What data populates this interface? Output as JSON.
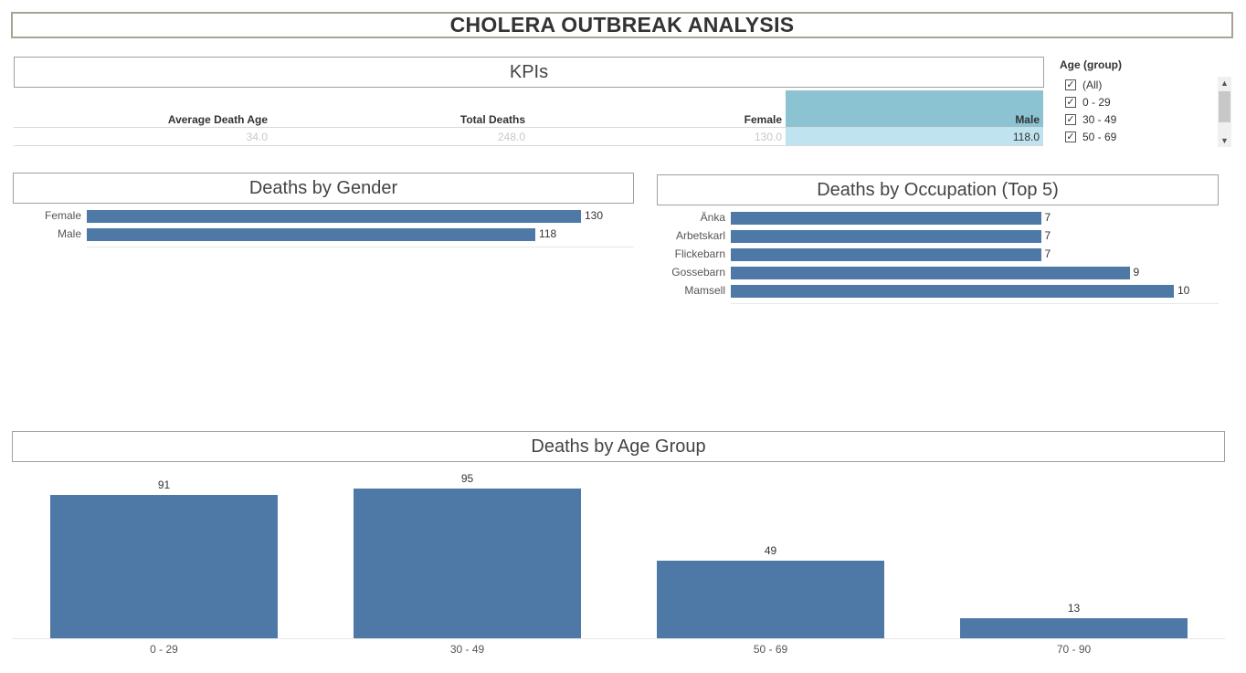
{
  "title": "CHOLERA OUTBREAK ANALYSIS",
  "kpis": {
    "section_title": "KPIs",
    "columns": [
      {
        "header": "Average Death Age",
        "value": "34.0"
      },
      {
        "header": "Total Deaths",
        "value": "248.0"
      },
      {
        "header": "Female",
        "value": "130.0"
      },
      {
        "header": "Male",
        "value": "118.0"
      }
    ]
  },
  "filter": {
    "title": "Age (group)",
    "items": [
      {
        "label": "(All)",
        "checked": true
      },
      {
        "label": "0 - 29",
        "checked": true
      },
      {
        "label": "30 - 49",
        "checked": true
      },
      {
        "label": "50 - 69",
        "checked": true
      }
    ]
  },
  "colors": {
    "bar": "#4e79a7",
    "kpi_highlight_header": "#8bc3d3",
    "kpi_highlight_value": "#bfe3ef",
    "title_border": "#a8a494"
  },
  "gender_chart": {
    "section_title": "Deaths by Gender"
  },
  "occupation_chart": {
    "section_title": "Deaths by Occupation (Top 5)"
  },
  "age_chart": {
    "section_title": "Deaths by Age Group"
  },
  "chart_data": [
    {
      "type": "bar",
      "orientation": "horizontal",
      "title": "Deaths by Gender",
      "categories": [
        "Female",
        "Male"
      ],
      "values": [
        130,
        118
      ],
      "xlim": [
        0,
        130
      ]
    },
    {
      "type": "bar",
      "orientation": "horizontal",
      "title": "Deaths by Occupation (Top 5)",
      "categories": [
        "Änka",
        "Arbetskarl",
        "Flickebarn",
        "Gossebarn",
        "Mamsell"
      ],
      "values": [
        7,
        7,
        7,
        9,
        10
      ],
      "xlim": [
        0,
        10
      ]
    },
    {
      "type": "bar",
      "orientation": "vertical",
      "title": "Deaths by Age Group",
      "categories": [
        "0 - 29",
        "30 - 49",
        "50 - 69",
        "70 - 90"
      ],
      "values": [
        91,
        95,
        49,
        13
      ],
      "ylim": [
        0,
        95
      ]
    }
  ]
}
